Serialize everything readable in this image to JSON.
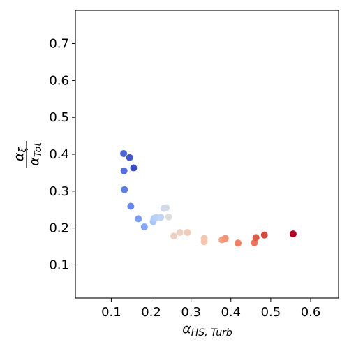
{
  "chart_data": {
    "type": "scatter",
    "colormap": "coolwarm",
    "xlabel": {
      "base": "α",
      "sub": "HS, Turb"
    },
    "ylabel": {
      "num_base": "α",
      "num_sub": "ξ",
      "den_base": "α",
      "den_sub": "Tot"
    },
    "xlim": [
      0.01,
      0.67
    ],
    "ylim": [
      0.01,
      0.79
    ],
    "xticks": [
      0.1,
      0.2,
      0.3,
      0.4,
      0.5,
      0.6
    ],
    "xtick_labels": [
      "0.1",
      "0.2",
      "0.3",
      "0.4",
      "0.5",
      "0.6"
    ],
    "yticks": [
      0.1,
      0.2,
      0.3,
      0.4,
      0.5,
      0.6,
      0.7
    ],
    "ytick_labels": [
      "0.1",
      "0.2",
      "0.3",
      "0.4",
      "0.5",
      "0.6",
      "0.7"
    ],
    "grid": false,
    "points": [
      {
        "x": 0.131,
        "y": 0.402,
        "color": "#4c63d6"
      },
      {
        "x": 0.146,
        "y": 0.391,
        "color": "#4358cc"
      },
      {
        "x": 0.132,
        "y": 0.355,
        "color": "#5470de"
      },
      {
        "x": 0.156,
        "y": 0.363,
        "color": "#3b4cc0"
      },
      {
        "x": 0.133,
        "y": 0.304,
        "color": "#5b7be5"
      },
      {
        "x": 0.149,
        "y": 0.259,
        "color": "#6788ee"
      },
      {
        "x": 0.168,
        "y": 0.225,
        "color": "#7b9ff9"
      },
      {
        "x": 0.183,
        "y": 0.203,
        "color": "#84a7fc"
      },
      {
        "x": 0.205,
        "y": 0.217,
        "color": "#aac7fd"
      },
      {
        "x": 0.207,
        "y": 0.226,
        "color": "#b3cdfb"
      },
      {
        "x": 0.213,
        "y": 0.229,
        "color": "#bbd1f8"
      },
      {
        "x": 0.224,
        "y": 0.229,
        "color": "#c0d4f5"
      },
      {
        "x": 0.232,
        "y": 0.253,
        "color": "#cbd8ee"
      },
      {
        "x": 0.238,
        "y": 0.255,
        "color": "#d2dbe8"
      },
      {
        "x": 0.244,
        "y": 0.23,
        "color": "#dcdddd"
      },
      {
        "x": 0.257,
        "y": 0.178,
        "color": "#edd2c3"
      },
      {
        "x": 0.272,
        "y": 0.188,
        "color": "#ecd3c5"
      },
      {
        "x": 0.291,
        "y": 0.188,
        "color": "#f0cdbb"
      },
      {
        "x": 0.333,
        "y": 0.172,
        "color": "#f3c8b2"
      },
      {
        "x": 0.333,
        "y": 0.163,
        "color": "#f4c6af"
      },
      {
        "x": 0.378,
        "y": 0.168,
        "color": "#f5a081"
      },
      {
        "x": 0.386,
        "y": 0.172,
        "color": "#f39475"
      },
      {
        "x": 0.418,
        "y": 0.159,
        "color": "#ec7f63"
      },
      {
        "x": 0.459,
        "y": 0.16,
        "color": "#e7745b"
      },
      {
        "x": 0.463,
        "y": 0.174,
        "color": "#dc5d4a"
      },
      {
        "x": 0.484,
        "y": 0.181,
        "color": "#d24b40"
      },
      {
        "x": 0.556,
        "y": 0.184,
        "color": "#b40426"
      }
    ]
  }
}
